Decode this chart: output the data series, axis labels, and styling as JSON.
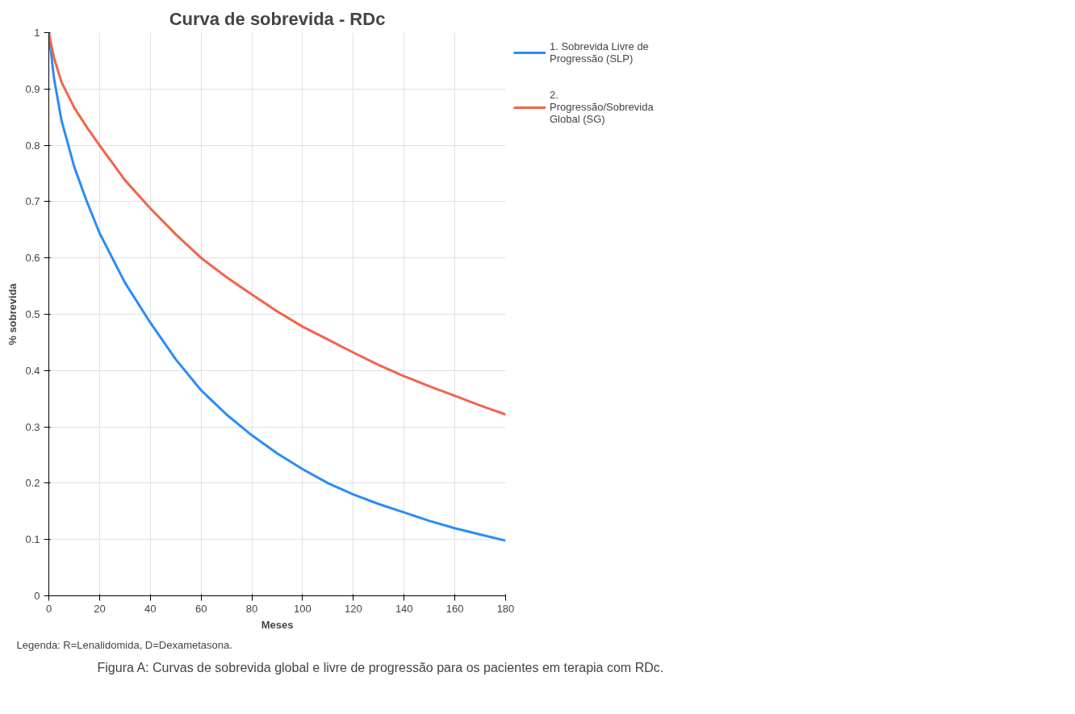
{
  "chart_data": {
    "type": "line",
    "title": "Curva de sobrevida - RDc",
    "xlabel": "Meses",
    "ylabel": "% sobrevida",
    "x": [
      0,
      2,
      5,
      10,
      15,
      20,
      30,
      40,
      50,
      60,
      70,
      80,
      90,
      100,
      110,
      120,
      130,
      140,
      150,
      160,
      170,
      180
    ],
    "series": [
      {
        "name": "1. Sobrevida Livre de Progressão (SLP)",
        "color": "#2b8cf6",
        "values": [
          1,
          0.92,
          0.844,
          0.762,
          0.7,
          0.644,
          0.556,
          0.485,
          0.42,
          0.365,
          0.322,
          0.285,
          0.253,
          0.225,
          0.2,
          0.18,
          0.163,
          0.148,
          0.133,
          0.12,
          0.109,
          0.098
        ]
      },
      {
        "name": "2. Progressão/Sobrevida Global (SG)",
        "color": "#f4634a",
        "values": [
          1,
          0.956,
          0.912,
          0.867,
          0.832,
          0.8,
          0.738,
          0.688,
          0.642,
          0.6,
          0.566,
          0.535,
          0.505,
          0.478,
          0.455,
          0.432,
          0.41,
          0.39,
          0.372,
          0.355,
          0.338,
          0.322
        ]
      }
    ],
    "xlim": [
      0,
      180
    ],
    "ylim": [
      0,
      1
    ],
    "xticks": [
      0,
      20,
      40,
      60,
      80,
      100,
      120,
      140,
      160,
      180
    ],
    "yticks": [
      0,
      0.1,
      0.2,
      0.3,
      0.4,
      0.5,
      0.6,
      0.7,
      0.8,
      0.9,
      1
    ],
    "grid": true,
    "legend": "right",
    "marker": "none",
    "line_style": "solid",
    "annotations": [
      "Legenda: R=Lenalidomida, D=Dexametasona.",
      "Figura A: Curvas de sobrevida global e livre de progressão para os pacientes em terapia com RDc."
    ]
  }
}
